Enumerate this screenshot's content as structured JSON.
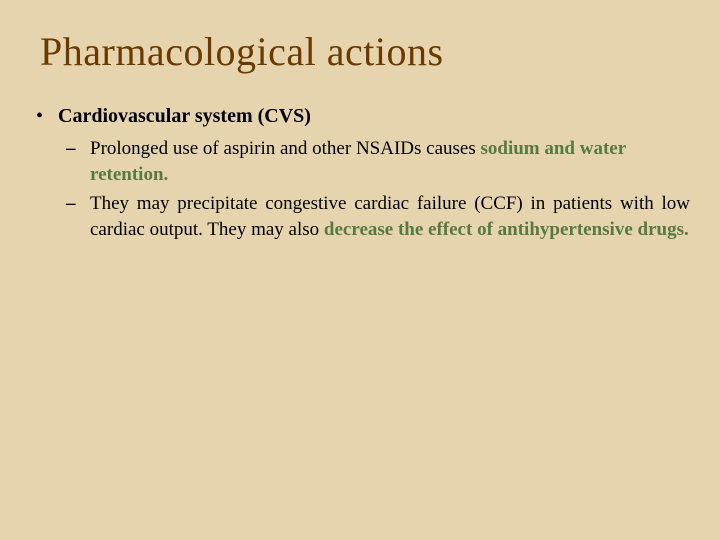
{
  "slide": {
    "background_color": "#e6d4af",
    "title_color": "#6b3a00",
    "body_color": "#000000",
    "highlight_color": "#567a3f",
    "title_fontsize": 40,
    "body_fontsize": 19,
    "title": "Pharmacological actions",
    "heading": "Cardiovascular system (CVS)",
    "bullets": [
      {
        "pre": "Prolonged use of aspirin and other NSAIDs causes ",
        "highlight": "sodium and water retention."
      },
      {
        "pre": "They may precipitate congestive cardiac failure (CCF) in patients with low cardiac output. They may also ",
        "highlight": "decrease the effect of antihypertensive drugs."
      }
    ]
  }
}
